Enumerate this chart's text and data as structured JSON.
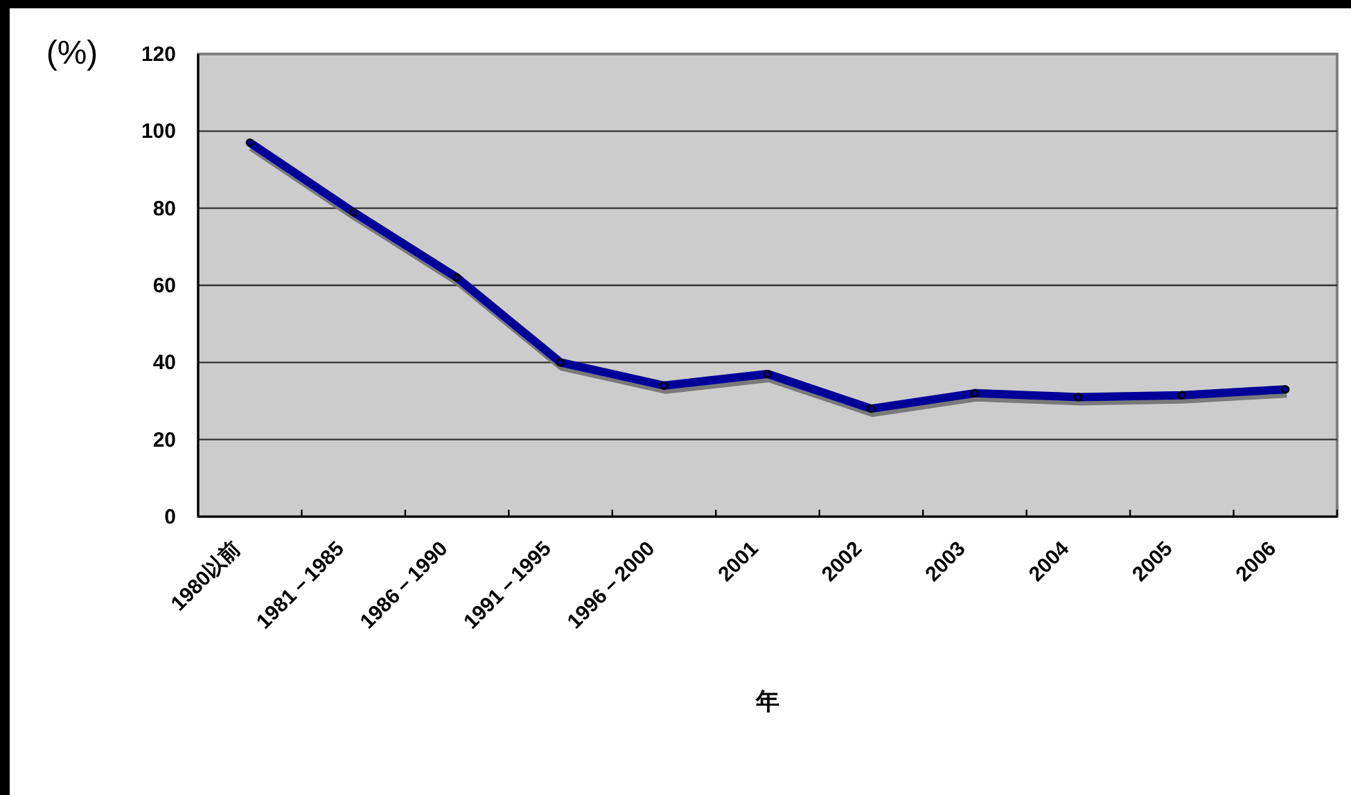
{
  "chart_data": {
    "type": "line",
    "ylabel": "(%)",
    "xlabel": "年",
    "categories": [
      "1980以前",
      "1981－1985",
      "1986－1990",
      "1991－1995",
      "1996－2000",
      "2001",
      "2002",
      "2003",
      "2004",
      "2005",
      "2006"
    ],
    "series": [
      {
        "color": "#000099",
        "values": [
          97,
          79,
          62,
          40,
          34,
          37,
          28,
          32,
          31,
          31.5,
          33
        ]
      }
    ],
    "ylim": [
      0,
      120
    ],
    "yticks": [
      0,
      20,
      40,
      60,
      80,
      100,
      120
    ],
    "grid": "y",
    "marker": "circle",
    "line_style": "solid"
  }
}
